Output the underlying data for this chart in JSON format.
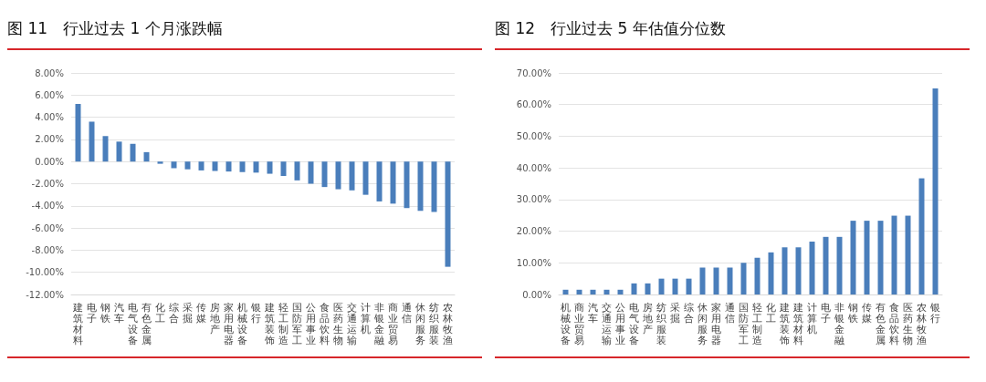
{
  "chart_data": [
    {
      "type": "bar",
      "title": "图 11　行业过去 1 个月涨跌幅",
      "categories": [
        "建筑材料",
        "电子",
        "钢铁",
        "汽车",
        "电气设备",
        "有色金属",
        "化工",
        "综合",
        "采掘",
        "传媒",
        "房地产",
        "家用电器",
        "机械设备",
        "银行",
        "建筑装饰",
        "轻工制造",
        "国防军工",
        "公用事业",
        "食品饮料",
        "医药生物",
        "交通运输",
        "计算机",
        "非银金融",
        "商业贸易",
        "通信",
        "休闲服务",
        "纺织服装",
        "农林牧渔"
      ],
      "values": [
        5.2,
        3.6,
        2.3,
        1.8,
        1.6,
        0.85,
        -0.2,
        -0.6,
        -0.7,
        -0.8,
        -0.85,
        -0.9,
        -0.95,
        -1.0,
        -1.1,
        -1.3,
        -1.7,
        -2.0,
        -2.3,
        -2.5,
        -2.6,
        -3.0,
        -3.6,
        -3.8,
        -4.2,
        -4.45,
        -4.55,
        -9.5
      ],
      "color": "#4a7ebb",
      "ylim": [
        -12,
        8
      ],
      "yticks": [
        {
          "value": -12,
          "label": "-12.00%"
        },
        {
          "value": -10,
          "label": "-10.00%"
        },
        {
          "value": -8,
          "label": "-8.00%"
        },
        {
          "value": -6,
          "label": "-6.00%"
        },
        {
          "value": -4,
          "label": "-4.00%"
        },
        {
          "value": -2,
          "label": "-2.00%"
        },
        {
          "value": 0,
          "label": "0.00%"
        },
        {
          "value": 2,
          "label": "2.00%"
        },
        {
          "value": 4,
          "label": "4.00%"
        },
        {
          "value": 6,
          "label": "6.00%"
        },
        {
          "value": 8,
          "label": "8.00%"
        }
      ],
      "grid": "y"
    },
    {
      "type": "bar",
      "title": "图 12　行业过去 5 年估值分位数",
      "categories": [
        "机械设备",
        "商业贸易",
        "汽车",
        "交通运输",
        "公用事业",
        "电气设备",
        "房地产",
        "纺织服装",
        "采掘",
        "综合",
        "休闲服务",
        "家用电器",
        "通信",
        "国防军工",
        "轻工制造",
        "化工",
        "建筑装饰",
        "建筑材料",
        "计算机",
        "电子",
        "非银金融",
        "钢铁",
        "传媒",
        "有色金属",
        "食品饮料",
        "医药生物",
        "农林牧渔",
        "银行"
      ],
      "values": [
        1.5,
        1.5,
        1.5,
        1.5,
        1.5,
        3.5,
        3.5,
        5,
        5,
        5,
        8.5,
        8.5,
        8.5,
        10,
        11.6,
        13.3,
        14.9,
        14.9,
        16.7,
        18.2,
        18.2,
        23.3,
        23.3,
        23.3,
        24.9,
        24.9,
        36.7,
        65.1
      ],
      "color": "#4a7ebb",
      "ylim": [
        0,
        70
      ],
      "yticks": [
        {
          "value": 0,
          "label": "0.00%"
        },
        {
          "value": 10,
          "label": "10.00%"
        },
        {
          "value": 20,
          "label": "20.00%"
        },
        {
          "value": 30,
          "label": "30.00%"
        },
        {
          "value": 40,
          "label": "40.00%"
        },
        {
          "value": 50,
          "label": "50.00%"
        },
        {
          "value": 60,
          "label": "60.00%"
        },
        {
          "value": 70,
          "label": "70.00%"
        }
      ],
      "grid": "y"
    }
  ]
}
